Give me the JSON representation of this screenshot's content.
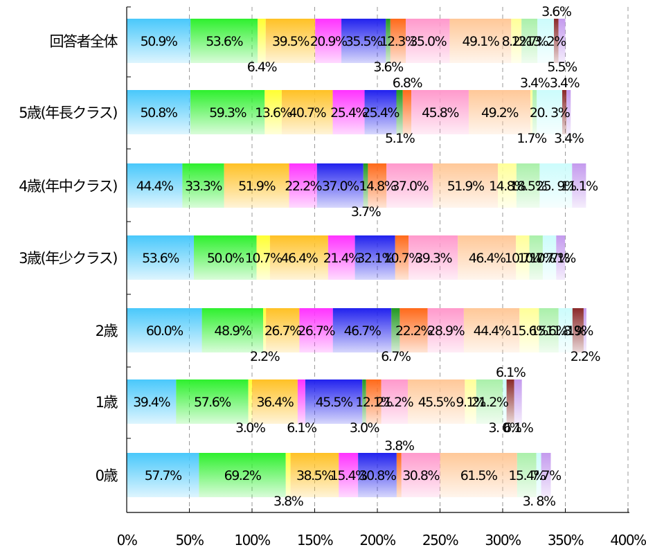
{
  "chart_data": {
    "type": "bar",
    "stacked": true,
    "orientation": "horizontal",
    "xlim": [
      0,
      400
    ],
    "x_ticks": [
      "0%",
      "50%",
      "100%",
      "150%",
      "200%",
      "250%",
      "300%",
      "350%",
      "400%"
    ],
    "grid": "vertical dashed",
    "categories": [
      "回答者全体",
      "5歳(年長クラス)",
      "4歳(年中クラス)",
      "3歳(年少クラス)",
      "2歳",
      "1歳",
      "0歳"
    ],
    "colors": [
      "#49c8fb",
      "#2ef02e",
      "#ffff33",
      "#ffc125",
      "#ff33ff",
      "#2222ee",
      "#229922",
      "#ff6a1a",
      "#ff99cc",
      "#ffc898",
      "#ffff99",
      "#aaf0aa",
      "#ccfcfc",
      "#8a2a2a",
      "#c49aee"
    ],
    "series_values": [
      [
        50.9,
        53.6,
        6.4,
        39.5,
        20.9,
        35.5,
        3.6,
        12.3,
        35.0,
        49.1,
        8.2,
        12.7,
        13.2,
        3.6,
        5.5
      ],
      [
        50.8,
        59.3,
        13.6,
        40.7,
        25.4,
        25.4,
        5.1,
        6.8,
        45.8,
        49.2,
        1.7,
        3.4,
        20.3,
        3.4,
        3.4
      ],
      [
        44.4,
        33.3,
        0,
        51.9,
        22.2,
        37.0,
        3.7,
        14.8,
        37.0,
        51.9,
        14.8,
        18.5,
        25.9,
        0,
        11.1
      ],
      [
        53.6,
        50.0,
        10.7,
        46.4,
        21.4,
        32.1,
        0,
        10.7,
        39.3,
        46.4,
        10.7,
        10.7,
        10.7,
        0,
        7.1
      ],
      [
        60.0,
        48.9,
        2.2,
        26.7,
        26.7,
        46.7,
        6.7,
        22.2,
        28.9,
        44.4,
        15.6,
        15.6,
        11.1,
        8.9,
        2.2
      ],
      [
        39.4,
        57.6,
        3.0,
        36.4,
        6.1,
        45.5,
        3.0,
        12.1,
        21.2,
        45.5,
        9.1,
        21.2,
        3.0,
        6.1,
        6.1
      ],
      [
        57.7,
        69.2,
        3.8,
        38.5,
        15.4,
        30.8,
        0,
        3.8,
        30.8,
        61.5,
        0,
        15.4,
        3.8,
        0,
        7.7
      ]
    ],
    "labels": [
      [
        "50.9%",
        "53.6%",
        "6.4%",
        "39.5%",
        "20.9%",
        "35.5%",
        "3.6%",
        "12.3%",
        "35.0%",
        "49.1%",
        "8.2%",
        "12.7%",
        "13. 2%",
        "3.6%",
        "5.5%"
      ],
      [
        "50.8%",
        "59.3%",
        "13.6%",
        "40.7%",
        "25.4%",
        "25.4%",
        "5.1%",
        "6.8%",
        "45.8%",
        "49.2%",
        "1.7%",
        "3.4%",
        "20. 3%",
        "3.4%",
        "3.4%"
      ],
      [
        "44.4%",
        "33.3%",
        "",
        "51.9%",
        "22.2%",
        "37.0%",
        "3.7%",
        "14.8%",
        "37.0%",
        "51.9%",
        "14.8%",
        "18.5%",
        "25. 9%",
        "",
        "11.1%"
      ],
      [
        "53.6%",
        "50.0%",
        "10.7%",
        "46.4%",
        "21.4%",
        "32.1%",
        "",
        "10.7%",
        "39.3%",
        "46.4%",
        "10.7%",
        "10.7%",
        "10. 7%",
        "",
        "7.1%"
      ],
      [
        "60.0%",
        "48.9%",
        "2.2%",
        "26.7%",
        "26.7%",
        "46.7%",
        "6.7%",
        "22.2%",
        "28.9%",
        "44.4%",
        "15.6%",
        "15.6%",
        "11. 1%",
        "8.9%",
        "2.2%"
      ],
      [
        "39.4%",
        "57.6%",
        "3.0%",
        "36.4%",
        "6.1%",
        "45.5%",
        "3.0%",
        "12.1%",
        "21.2%",
        "45.5%",
        "9.1%",
        "21.2%",
        "3. 0%",
        "6.1%",
        "6.1%"
      ],
      [
        "57.7%",
        "69.2%",
        "3.8%",
        "38.5%",
        "15.4%",
        "30.8%",
        "",
        "3.8%",
        "30.8%",
        "61.5%",
        "",
        "15.4%",
        "3. 8%",
        "",
        "7.7%"
      ]
    ]
  }
}
